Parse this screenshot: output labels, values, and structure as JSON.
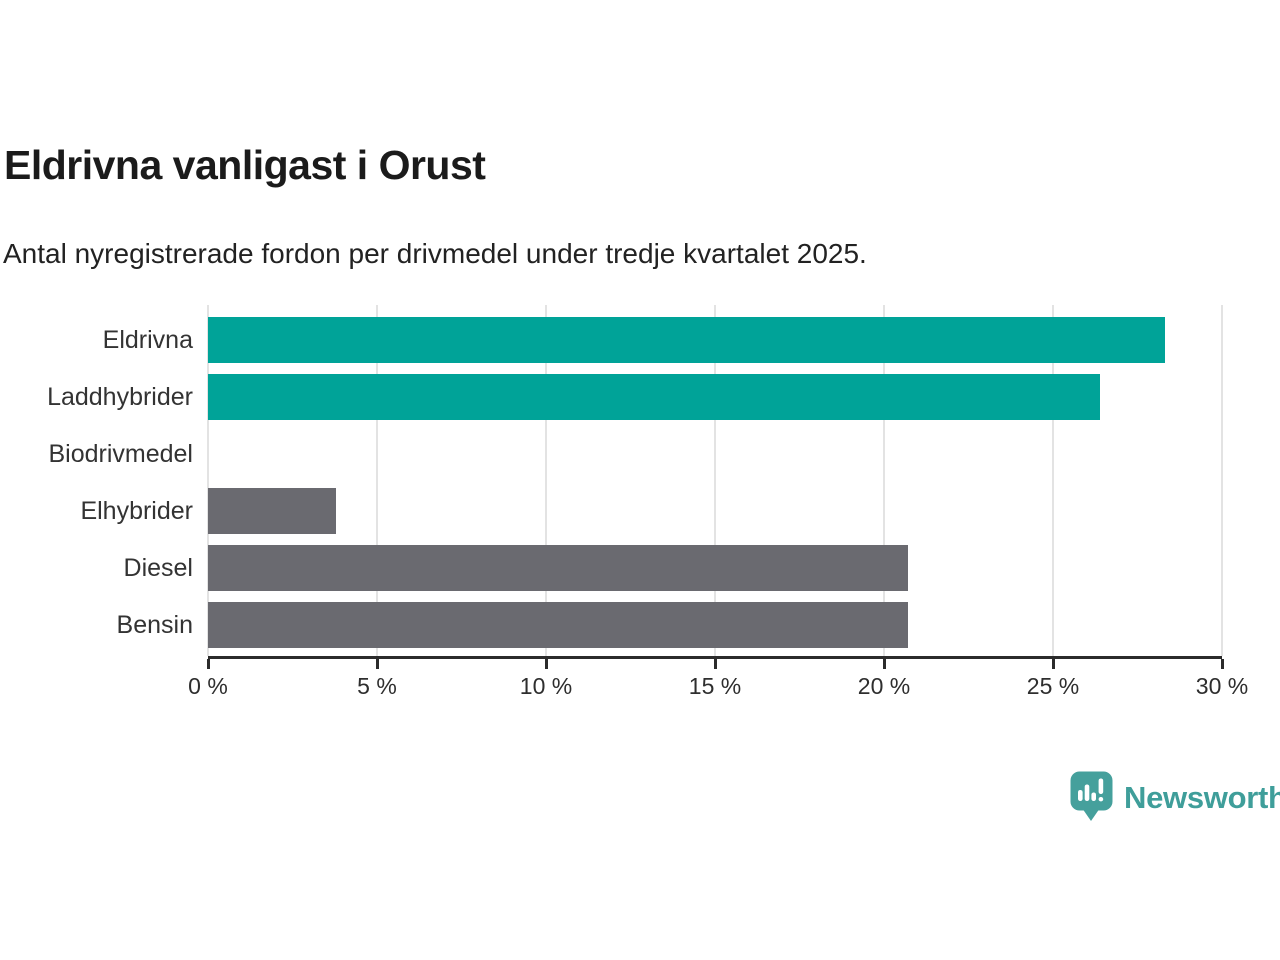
{
  "header": {
    "title": "Eldrivna vanligast i Orust",
    "subtitle": "Antal nyregistrerade fordon per drivmedel under tredje kvartalet 2025."
  },
  "chart_data": {
    "type": "bar",
    "orientation": "horizontal",
    "title": "Eldrivna vanligast i Orust",
    "subtitle": "Antal nyregistrerade fordon per drivmedel under tredje kvartalet 2025.",
    "categories": [
      "Eldrivna",
      "Laddhybrider",
      "Biodrivmedel",
      "Elhybrider",
      "Diesel",
      "Bensin"
    ],
    "values": [
      28.3,
      26.4,
      0,
      3.8,
      20.7,
      20.7
    ],
    "unit": "%",
    "bar_colors": [
      "#00a398",
      "#00a398",
      "#6a6a70",
      "#6a6a70",
      "#6a6a70",
      "#6a6a70"
    ],
    "xlim": [
      0,
      30
    ],
    "x_ticks": [
      0,
      5,
      10,
      15,
      20,
      25,
      30
    ],
    "x_tick_labels": [
      "0 %",
      "5 %",
      "10 %",
      "15 %",
      "20 %",
      "25 %",
      "30 %"
    ],
    "grid": true,
    "legend": "none",
    "xlabel": "",
    "ylabel": ""
  },
  "footer": {
    "brand": "Newsworthy",
    "icon": "newsworthy-speech-bubble-bar-chart-icon"
  },
  "colors": {
    "accent_teal": "#00a398",
    "neutral_gray": "#6a6a70",
    "logo_teal": "#3f9e9a",
    "axis": "#2b2b2b",
    "gridline": "#e3e3e3",
    "title_text": "#1b1b1b",
    "body_text": "#333333",
    "background": "#ffffff"
  }
}
